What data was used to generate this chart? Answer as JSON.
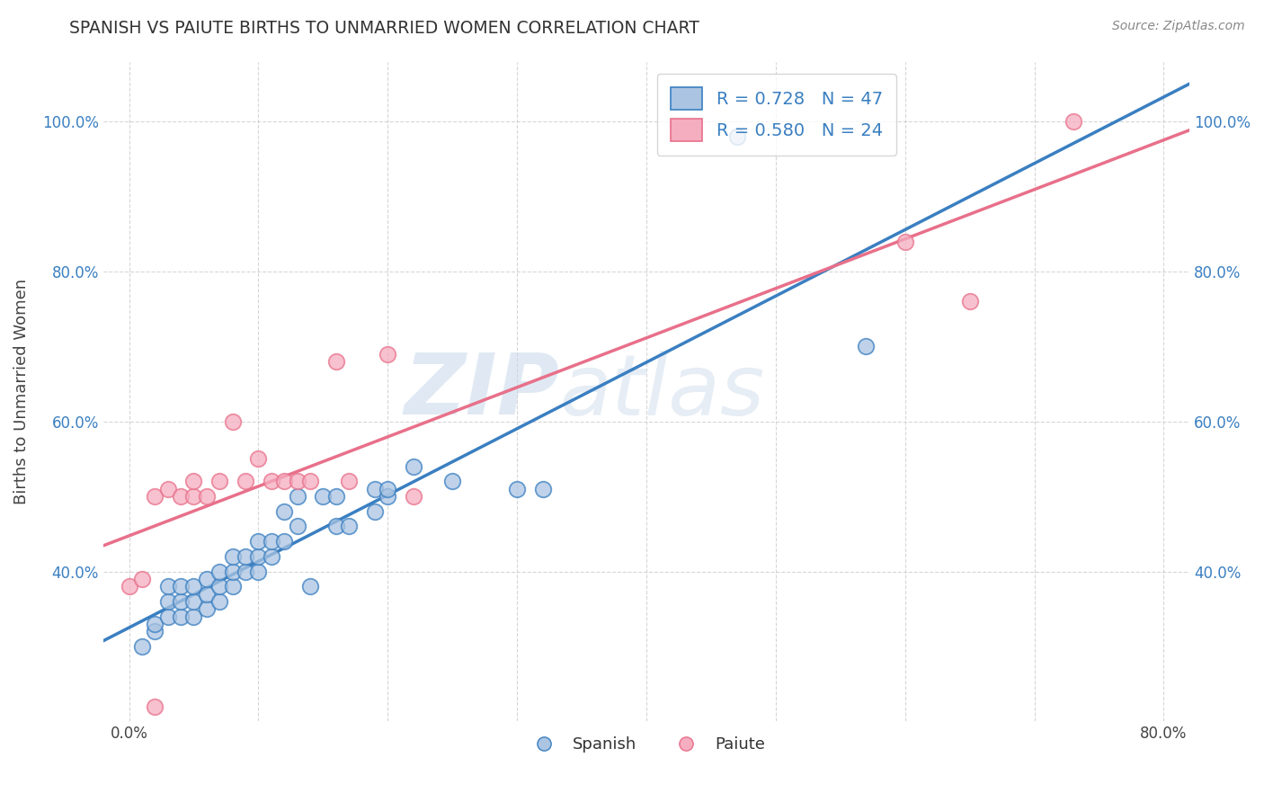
{
  "title": "SPANISH VS PAIUTE BIRTHS TO UNMARRIED WOMEN CORRELATION CHART",
  "source": "Source: ZipAtlas.com",
  "ylabel": "Births to Unmarried Women",
  "xlim": [
    -0.02,
    0.82
  ],
  "ylim": [
    0.2,
    1.08
  ],
  "x_ticks": [
    0.0,
    0.1,
    0.2,
    0.3,
    0.4,
    0.5,
    0.6,
    0.7,
    0.8
  ],
  "x_tick_labels": [
    "0.0%",
    "",
    "",
    "",
    "",
    "",
    "",
    "",
    "80.0%"
  ],
  "y_ticks": [
    0.4,
    0.6,
    0.8,
    1.0
  ],
  "y_tick_labels_left": [
    "40.0%",
    "60.0%",
    "80.0%",
    "100.0%"
  ],
  "y_tick_labels_right": [
    "40.0%",
    "60.0%",
    "80.0%",
    "100.0%"
  ],
  "spanish_color": "#aac4e2",
  "paiute_color": "#f5adc0",
  "trend_spanish_color": "#3a7fc1",
  "trend_paiute_color": "#e8708a",
  "legend_label_spanish": "R = 0.728   N = 47",
  "legend_label_paiute": "R = 0.580   N = 24",
  "legend_bottom_spanish": "Spanish",
  "legend_bottom_paiute": "Paiute",
  "watermark_zip": "ZIP",
  "watermark_atlas": "atlas",
  "spanish_x": [
    0.01,
    0.02,
    0.02,
    0.03,
    0.03,
    0.03,
    0.04,
    0.04,
    0.04,
    0.05,
    0.05,
    0.05,
    0.06,
    0.06,
    0.06,
    0.07,
    0.07,
    0.07,
    0.08,
    0.08,
    0.08,
    0.09,
    0.09,
    0.1,
    0.1,
    0.1,
    0.11,
    0.11,
    0.12,
    0.12,
    0.13,
    0.13,
    0.14,
    0.15,
    0.16,
    0.16,
    0.17,
    0.19,
    0.19,
    0.2,
    0.2,
    0.22,
    0.25,
    0.3,
    0.32,
    0.47,
    0.57
  ],
  "spanish_y": [
    0.3,
    0.32,
    0.33,
    0.34,
    0.36,
    0.38,
    0.34,
    0.36,
    0.38,
    0.34,
    0.36,
    0.38,
    0.35,
    0.37,
    0.39,
    0.36,
    0.38,
    0.4,
    0.38,
    0.4,
    0.42,
    0.4,
    0.42,
    0.4,
    0.42,
    0.44,
    0.42,
    0.44,
    0.44,
    0.48,
    0.46,
    0.5,
    0.38,
    0.5,
    0.46,
    0.5,
    0.46,
    0.48,
    0.51,
    0.5,
    0.51,
    0.54,
    0.52,
    0.51,
    0.51,
    0.98,
    0.7
  ],
  "paiute_x": [
    0.0,
    0.01,
    0.02,
    0.02,
    0.03,
    0.04,
    0.05,
    0.05,
    0.06,
    0.07,
    0.08,
    0.09,
    0.1,
    0.11,
    0.12,
    0.13,
    0.14,
    0.16,
    0.17,
    0.2,
    0.22,
    0.6,
    0.65,
    0.73
  ],
  "paiute_y": [
    0.38,
    0.39,
    0.22,
    0.5,
    0.51,
    0.5,
    0.5,
    0.52,
    0.5,
    0.52,
    0.6,
    0.52,
    0.55,
    0.52,
    0.52,
    0.52,
    0.52,
    0.68,
    0.52,
    0.69,
    0.5,
    0.84,
    0.76,
    1.0
  ]
}
